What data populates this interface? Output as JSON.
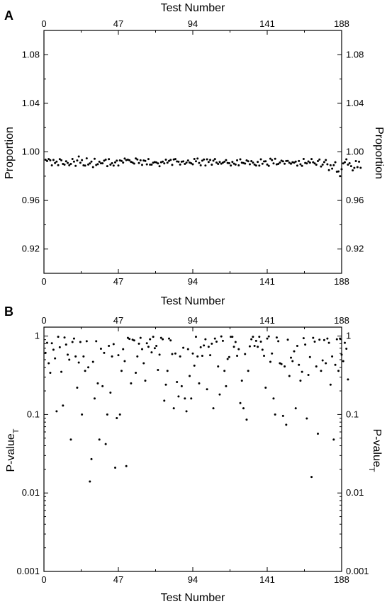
{
  "chart_data": [
    {
      "panel": "A",
      "type": "scatter",
      "xlabel_top": "Test Number",
      "xlabel_bottom": "Test Number",
      "ylabel_left": "Proportion",
      "ylabel_right": "Proportion",
      "xlim": [
        0,
        188
      ],
      "ylim": [
        0.9,
        1.1
      ],
      "x_ticks": [
        0,
        47,
        94,
        141,
        188
      ],
      "y_ticks": [
        0.92,
        0.96,
        1.0,
        1.04,
        1.08
      ],
      "y_tick_labels": [
        "0.92",
        "0.96",
        "1.00",
        "1.04",
        "1.08"
      ],
      "grid": false,
      "series": [
        {
          "values": [
            0.9935,
            0.9925,
            0.9941,
            0.9931,
            0.9889,
            0.9934,
            0.9908,
            0.992,
            0.9891,
            0.994,
            0.9931,
            0.9901,
            0.9895,
            0.9923,
            0.9909,
            0.989,
            0.9901,
            0.9942,
            0.992,
            0.9885,
            0.9929,
            0.9962,
            0.991,
            0.9932,
            0.9889,
            0.9887,
            0.9947,
            0.9896,
            0.9905,
            0.992,
            0.9875,
            0.9943,
            0.9892,
            0.9899,
            0.9919,
            0.9906,
            0.9906,
            0.9928,
            0.9936,
            0.9883,
            0.994,
            0.9895,
            0.9907,
            0.9887,
            0.9914,
            0.9928,
            0.9888,
            0.993,
            0.9926,
            0.9912,
            0.9945,
            0.9932,
            0.9936,
            0.9931,
            0.9918,
            0.9912,
            0.9904,
            0.9946,
            0.9937,
            0.9908,
            0.9931,
            0.9893,
            0.9929,
            0.9926,
            0.9897,
            0.9941,
            0.9895,
            0.9895,
            0.9911,
            0.9916,
            0.9913,
            0.9905,
            0.9882,
            0.9915,
            0.992,
            0.9905,
            0.9936,
            0.9911,
            0.9926,
            0.9934,
            0.9893,
            0.9937,
            0.9941,
            0.9921,
            0.9919,
            0.9896,
            0.9919,
            0.9922,
            0.9901,
            0.9912,
            0.9929,
            0.9912,
            0.9906,
            0.9898,
            0.9942,
            0.9923,
            0.9945,
            0.9909,
            0.9889,
            0.9928,
            0.9937,
            0.9888,
            0.9939,
            0.9917,
            0.9934,
            0.9894,
            0.9928,
            0.9941,
            0.9912,
            0.9901,
            0.9917,
            0.9903,
            0.9911,
            0.9919,
            0.9932,
            0.9909,
            0.9907,
            0.9888,
            0.9918,
            0.9903,
            0.9896,
            0.9931,
            0.9889,
            0.9939,
            0.9911,
            0.9908,
            0.9904,
            0.993,
            0.9923,
            0.9898,
            0.9924,
            0.9912,
            0.9896,
            0.9888,
            0.9918,
            0.9887,
            0.9939,
            0.9902,
            0.9921,
            0.9923,
            0.9896,
            0.9885,
            0.9944,
            0.9932,
            0.9905,
            0.9943,
            0.9897,
            0.9901,
            0.9912,
            0.9928,
            0.9922,
            0.9902,
            0.9925,
            0.9926,
            0.991,
            0.9902,
            0.9915,
            0.9912,
            0.992,
            0.9887,
            0.9925,
            0.9898,
            0.9885,
            0.9942,
            0.9909,
            0.9905,
            0.9921,
            0.9911,
            0.9941,
            0.9915,
            0.9905,
            0.9894,
            0.9924,
            0.9937,
            0.988,
            0.9895,
            0.9916,
            0.9933,
            0.9898,
            0.985,
            0.989,
            0.9862,
            0.9891,
            0.9915,
            0.9837,
            0.9839,
            0.98,
            0.9857,
            0.9905,
            0.9915,
            0.9939,
            0.9895,
            0.9907,
            0.9883,
            0.9848,
            0.9868,
            0.9924,
            0.9875,
            0.9919,
            0.9869
          ]
        }
      ]
    },
    {
      "panel": "B",
      "type": "scatter",
      "xlabel_top": "",
      "xlabel_bottom": "Test Number",
      "ylabel_left": "P-value",
      "ylabel_left_sub": "T",
      "ylabel_right": "P-value",
      "ylabel_right_sub": "T",
      "xlim": [
        0,
        188
      ],
      "ylim": [
        0.001,
        1.3
      ],
      "y_scale": "log",
      "x_ticks": [
        0,
        47,
        94,
        141,
        188
      ],
      "y_ticks": [
        0.001,
        0.01,
        0.1,
        1
      ],
      "y_tick_labels": [
        "0.001",
        "0.01",
        "0.1",
        "1"
      ],
      "grid": false,
      "series": [
        {
          "values": [
            0.61,
            0.82,
            0.45,
            0.34,
            0.81,
            0.67,
            0.52,
            0.11,
            0.98,
            0.72,
            0.35,
            0.13,
            0.96,
            0.78,
            0.58,
            0.5,
            0.048,
            0.84,
            0.93,
            0.55,
            0.22,
            0.46,
            0.84,
            0.1,
            0.55,
            0.36,
            0.86,
            0.4,
            0.014,
            0.027,
            0.47,
            0.16,
            0.86,
            0.25,
            0.048,
            0.69,
            0.23,
            0.61,
            0.042,
            0.1,
            0.75,
            0.19,
            0.55,
            0.79,
            0.021,
            0.09,
            0.57,
            0.1,
            0.36,
            0.68,
            0.48,
            0.022,
            0.95,
            0.92,
            0.25,
            0.9,
            0.88,
            0.34,
            0.55,
            0.8,
            0.95,
            0.68,
            0.45,
            0.27,
            0.81,
            0.73,
            0.91,
            0.62,
            0.98,
            0.7,
            0.75,
            0.37,
            0.58,
            0.95,
            0.91,
            0.15,
            0.24,
            0.36,
            0.93,
            0.88,
            0.59,
            0.12,
            0.6,
            0.26,
            0.17,
            0.55,
            0.23,
            0.71,
            0.16,
            0.11,
            0.68,
            0.31,
            0.16,
            0.6,
            0.42,
            0.98,
            0.55,
            0.25,
            0.72,
            0.56,
            0.76,
            0.91,
            0.21,
            0.73,
            0.57,
            0.8,
            0.12,
            0.93,
            0.85,
            0.41,
            0.18,
            0.99,
            0.87,
            0.36,
            0.23,
            0.51,
            0.54,
            0.98,
            0.98,
            0.73,
            0.84,
            0.56,
            0.68,
            0.14,
            0.27,
            0.12,
            0.59,
            0.086,
            0.36,
            0.74,
            0.91,
            0.98,
            0.75,
            0.87,
            0.73,
            0.98,
            0.85,
            0.67,
            0.56,
            0.22,
            0.93,
            0.99,
            0.47,
            0.6,
            0.16,
            0.1,
            0.96,
            0.86,
            0.45,
            0.44,
            0.096,
            0.41,
            0.074,
            0.9,
            0.31,
            0.53,
            0.48,
            0.64,
            0.12,
            0.75,
            0.43,
            0.27,
            0.35,
            0.94,
            0.78,
            0.089,
            0.32,
            0.54,
            0.016,
            0.95,
            0.85,
            0.41,
            0.057,
            0.9,
            0.36,
            0.49,
            0.89,
            0.45,
            0.93,
            0.82,
            0.24,
            0.55,
            0.048,
            0.43,
            0.91,
            0.36,
            0.93,
            0.58,
            0.48,
            0.82,
            0.69,
            0.28
          ]
        }
      ]
    }
  ],
  "panels": {
    "a_letter": "A",
    "b_letter": "B"
  }
}
